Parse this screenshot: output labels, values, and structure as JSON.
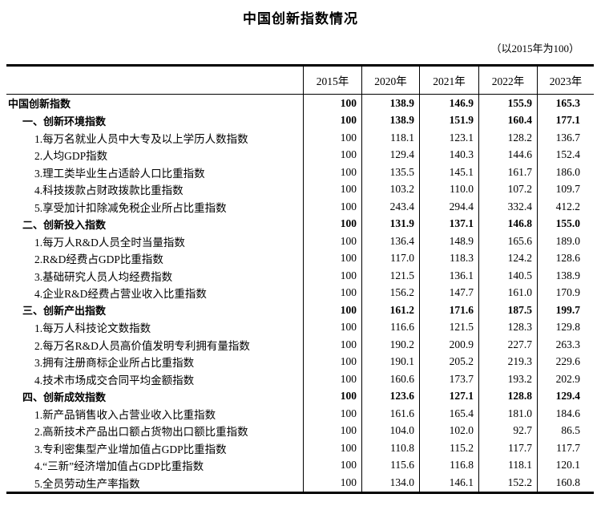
{
  "title": "中国创新指数情况",
  "subtitle": "（以2015年为100）",
  "table": {
    "col_headers": [
      "2015年",
      "2020年",
      "2021年",
      "2022年",
      "2023年"
    ],
    "rows": [
      {
        "label": "中国创新指数",
        "level": 0,
        "bold": true,
        "values": [
          "100",
          "138.9",
          "146.9",
          "155.9",
          "165.3"
        ]
      },
      {
        "label": "一、创新环境指数",
        "level": 1,
        "bold": true,
        "values": [
          "100",
          "138.9",
          "151.9",
          "160.4",
          "177.1"
        ]
      },
      {
        "label": "1.每万名就业人员中大专及以上学历人数指数",
        "level": 2,
        "bold": false,
        "values": [
          "100",
          "118.1",
          "123.1",
          "128.2",
          "136.7"
        ]
      },
      {
        "label": "2.人均GDP指数",
        "level": 2,
        "bold": false,
        "values": [
          "100",
          "129.4",
          "140.3",
          "144.6",
          "152.4"
        ]
      },
      {
        "label": "3.理工类毕业生占适龄人口比重指数",
        "level": 2,
        "bold": false,
        "values": [
          "100",
          "135.5",
          "145.1",
          "161.7",
          "186.0"
        ]
      },
      {
        "label": "4.科技拨款占财政拨款比重指数",
        "level": 2,
        "bold": false,
        "values": [
          "100",
          "103.2",
          "110.0",
          "107.2",
          "109.7"
        ]
      },
      {
        "label": "5.享受加计扣除减免税企业所占比重指数",
        "level": 2,
        "bold": false,
        "values": [
          "100",
          "243.4",
          "294.4",
          "332.4",
          "412.2"
        ]
      },
      {
        "label": "二、创新投入指数",
        "level": 1,
        "bold": true,
        "values": [
          "100",
          "131.9",
          "137.1",
          "146.8",
          "155.0"
        ]
      },
      {
        "label": "1.每万人R&D人员全时当量指数",
        "level": 2,
        "bold": false,
        "values": [
          "100",
          "136.4",
          "148.9",
          "165.6",
          "189.0"
        ]
      },
      {
        "label": "2.R&D经费占GDP比重指数",
        "level": 2,
        "bold": false,
        "values": [
          "100",
          "117.0",
          "118.3",
          "124.2",
          "128.6"
        ]
      },
      {
        "label": "3.基础研究人员人均经费指数",
        "level": 2,
        "bold": false,
        "values": [
          "100",
          "121.5",
          "136.1",
          "140.5",
          "138.9"
        ]
      },
      {
        "label": "4.企业R&D经费占营业收入比重指数",
        "level": 2,
        "bold": false,
        "values": [
          "100",
          "156.2",
          "147.7",
          "161.0",
          "170.9"
        ]
      },
      {
        "label": "三、创新产出指数",
        "level": 1,
        "bold": true,
        "values": [
          "100",
          "161.2",
          "171.6",
          "187.5",
          "199.7"
        ]
      },
      {
        "label": "1.每万人科技论文数指数",
        "level": 2,
        "bold": false,
        "values": [
          "100",
          "116.6",
          "121.5",
          "128.3",
          "129.8"
        ]
      },
      {
        "label": "2.每万名R&D人员高价值发明专利拥有量指数",
        "level": 2,
        "bold": false,
        "values": [
          "100",
          "190.2",
          "200.9",
          "227.7",
          "263.3"
        ]
      },
      {
        "label": "3.拥有注册商标企业所占比重指数",
        "level": 2,
        "bold": false,
        "values": [
          "100",
          "190.1",
          "205.2",
          "219.3",
          "229.6"
        ]
      },
      {
        "label": "4.技术市场成交合同平均金额指数",
        "level": 2,
        "bold": false,
        "values": [
          "100",
          "160.6",
          "173.7",
          "193.2",
          "202.9"
        ]
      },
      {
        "label": "四、创新成效指数",
        "level": 1,
        "bold": true,
        "values": [
          "100",
          "123.6",
          "127.1",
          "128.8",
          "129.4"
        ]
      },
      {
        "label": "1.新产品销售收入占营业收入比重指数",
        "level": 2,
        "bold": false,
        "values": [
          "100",
          "161.6",
          "165.4",
          "181.0",
          "184.6"
        ]
      },
      {
        "label": "2.高新技术产品出口额占货物出口额比重指数",
        "level": 2,
        "bold": false,
        "values": [
          "100",
          "104.0",
          "102.0",
          "92.7",
          "86.5"
        ]
      },
      {
        "label": "3.专利密集型产业增加值占GDP比重指数",
        "level": 2,
        "bold": false,
        "values": [
          "100",
          "110.8",
          "115.2",
          "117.7",
          "117.7"
        ]
      },
      {
        "label": "4.“三新”经济增加值占GDP比重指数",
        "level": 2,
        "bold": false,
        "values": [
          "100",
          "115.6",
          "116.8",
          "118.1",
          "120.1"
        ]
      },
      {
        "label": "5.全员劳动生产率指数",
        "level": 2,
        "bold": false,
        "values": [
          "100",
          "134.0",
          "146.1",
          "152.2",
          "160.8"
        ]
      }
    ]
  }
}
